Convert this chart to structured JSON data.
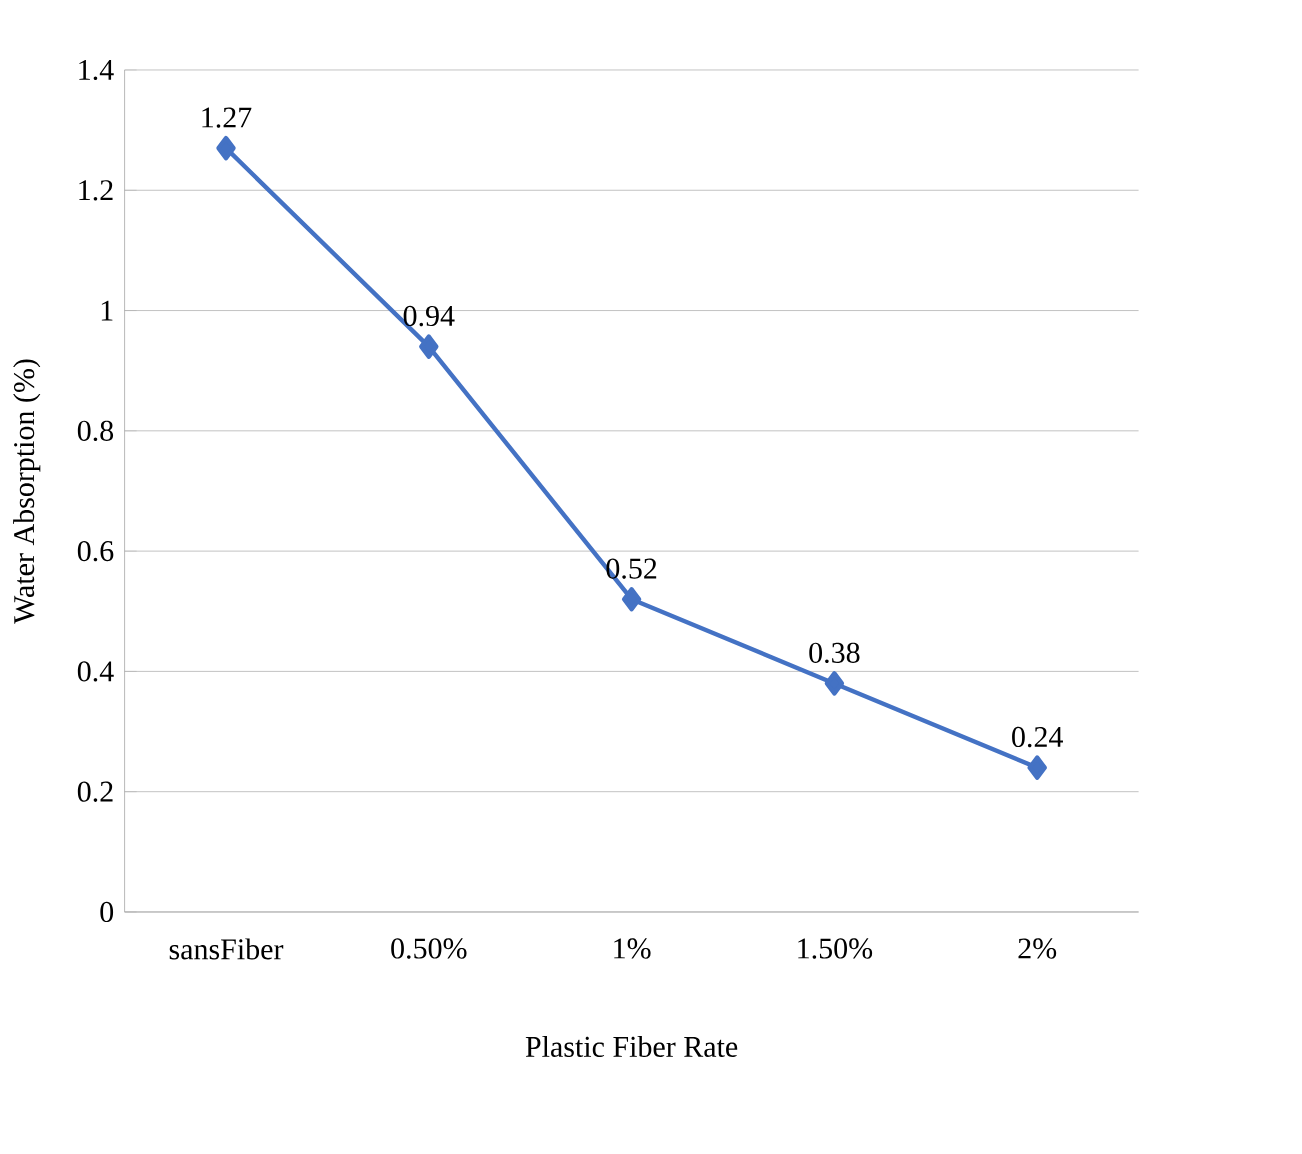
{
  "chart_data": {
    "type": "line",
    "xlabel": "Plastic Fiber Rate",
    "ylabel": "Water Absorption (%)",
    "categories": [
      "sansFiber",
      "0.50%",
      "1%",
      "1.50%",
      "2%"
    ],
    "values": [
      1.27,
      0.94,
      0.52,
      0.38,
      0.24
    ],
    "color": "#4472c4",
    "marker": "diamond",
    "data_labels": true,
    "grid": "y",
    "ylim": [
      0,
      1.4
    ],
    "yticks": [
      0,
      0.2,
      0.4,
      0.6,
      0.8,
      1,
      1.2,
      1.4
    ]
  }
}
